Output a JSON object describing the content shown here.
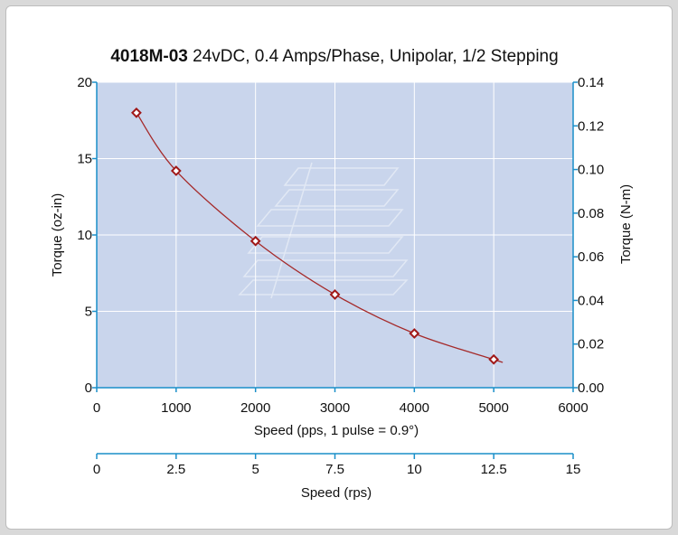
{
  "chart_data": {
    "type": "line",
    "title_bold": "4018M-03",
    "title_rest": " 24vDC, 0.4 Amps/Phase, Unipolar, 1/2 Stepping",
    "xlabel": "Speed (pps, 1 pulse = 0.9°)",
    "ylabel_left": "Torque (oz-in)",
    "ylabel_right": "Torque (N-m)",
    "x2label": "Speed (rps)",
    "xlim": [
      0,
      6000
    ],
    "ylim_left": [
      0,
      20
    ],
    "ylim_right": [
      0,
      0.14
    ],
    "x2lim": [
      0,
      15
    ],
    "x_ticks": [
      "0",
      "1000",
      "2000",
      "3000",
      "4000",
      "5000",
      "6000"
    ],
    "y_left_ticks": [
      "0",
      "5",
      "10",
      "15",
      "20"
    ],
    "y_right_ticks": [
      "0.00",
      "0.02",
      "0.04",
      "0.06",
      "0.08",
      "0.10",
      "0.12",
      "0.14"
    ],
    "x2_ticks": [
      "0",
      "2.5",
      "5",
      "7.5",
      "10",
      "12.5",
      "15"
    ],
    "grid": true,
    "series": [
      {
        "x": [
          500,
          1000,
          2000,
          3000,
          4000,
          5000
        ],
        "y": [
          18.0,
          14.2,
          9.6,
          6.1,
          3.55,
          1.85
        ]
      }
    ],
    "colors": {
      "plot_bg": "#c9d5ec",
      "grid": "#ffffff",
      "axis": "#1a8fc9",
      "line": "#a52a2a",
      "marker": "#a01818"
    }
  }
}
